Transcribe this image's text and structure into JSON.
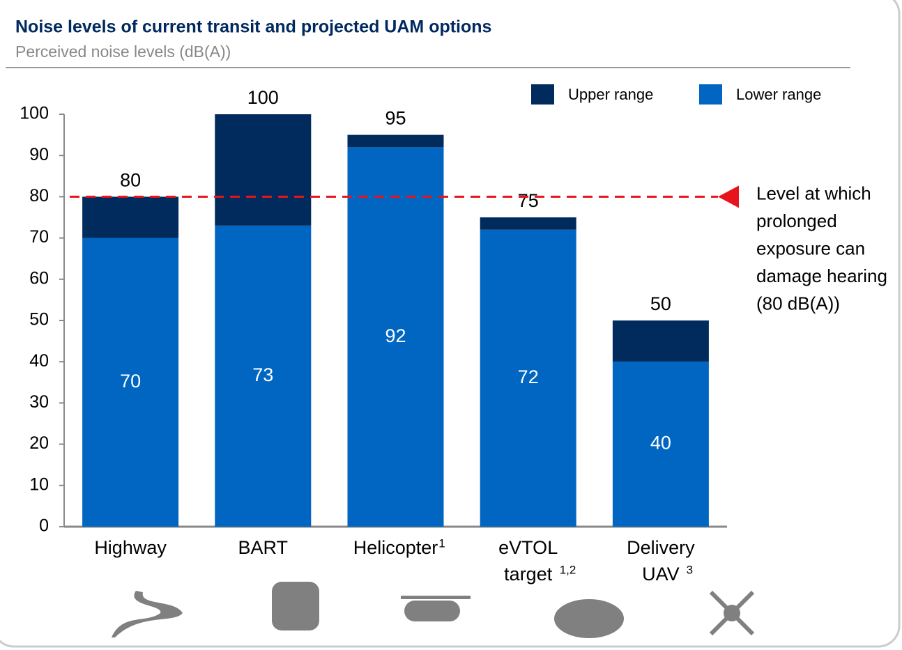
{
  "chart_data": {
    "type": "stacked_bar",
    "title": "Noise levels of current transit and projected UAM options",
    "subtitle": "Perceived noise levels (dB(A))",
    "categories": [
      [
        "Highway"
      ],
      [
        "BART"
      ],
      [
        "Helicopter"
      ],
      [
        "eVTOL",
        "target"
      ],
      [
        "Delivery",
        "UAV"
      ]
    ],
    "footnotes": [
      null,
      null,
      "1",
      "1,2",
      "3"
    ],
    "series": [
      {
        "name": "Lower range",
        "color": "#0066c2",
        "values": [
          70,
          73,
          92,
          72,
          40
        ]
      },
      {
        "name": "Upper range",
        "color": "#002b5c",
        "values": [
          10,
          27,
          3,
          3,
          10
        ]
      }
    ],
    "totals": [
      80,
      100,
      95,
      75,
      50
    ],
    "ylim": [
      0,
      100
    ],
    "yticks": [
      0,
      10,
      20,
      30,
      40,
      50,
      60,
      70,
      80,
      90,
      100
    ],
    "reference_line": {
      "value": 80,
      "color": "#e8141c",
      "label": [
        "Level at which",
        "prolonged",
        "exposure can",
        "damage hearing",
        "(80 dB(A))"
      ]
    }
  }
}
